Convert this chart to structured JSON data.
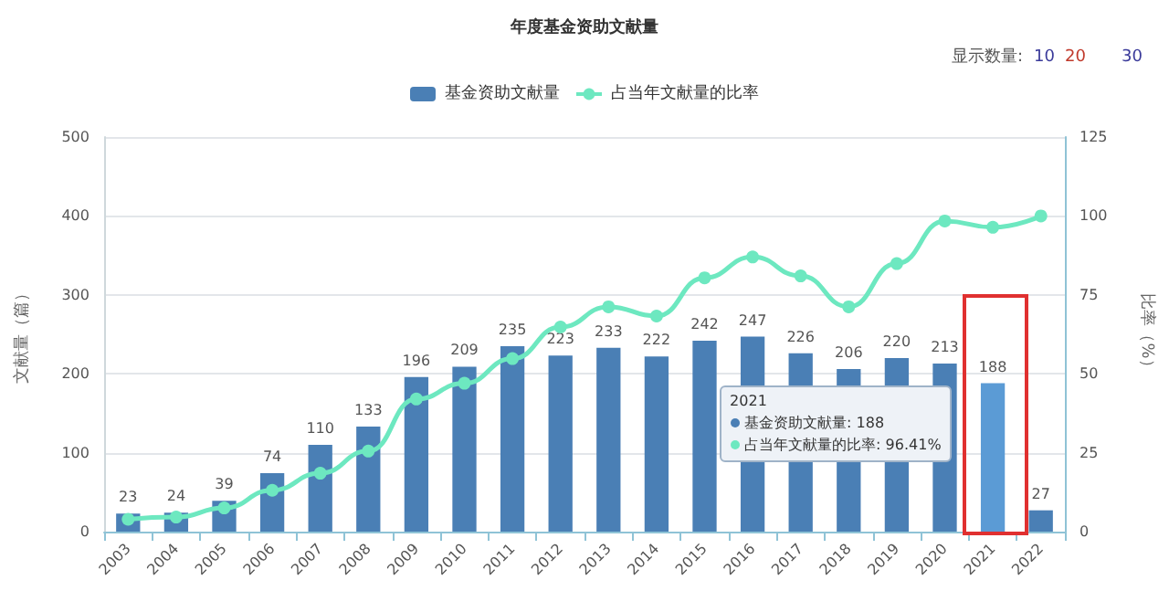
{
  "chart_data": {
    "type": "bar",
    "title": "年度基金资助文献量",
    "xlabel": null,
    "ylabel": "文献量（篇）",
    "y2label": "比率（%）",
    "categories": [
      "2003",
      "2004",
      "2005",
      "2006",
      "2007",
      "2008",
      "2009",
      "2010",
      "2011",
      "2012",
      "2013",
      "2014",
      "2015",
      "2016",
      "2017",
      "2018",
      "2019",
      "2020",
      "2021",
      "2022"
    ],
    "series": [
      {
        "name": "基金资助文献量",
        "color": "#4a7fb5",
        "colors": [
          "#4a7fb5",
          "#4a7fb5",
          "#4a7fb5",
          "#4a7fb5",
          "#4a7fb5",
          "#4a7fb5",
          "#4a7fb5",
          "#4a7fb5",
          "#4a7fb5",
          "#4a7fb5",
          "#4a7fb5",
          "#4a7fb5",
          "#4a7fb5",
          "#4a7fb5",
          "#4a7fb5",
          "#4a7fb5",
          "#4a7fb5",
          "#4a7fb5",
          "#5b9bd5",
          "#4a7fb5"
        ],
        "values": [
          23,
          24,
          39,
          74,
          110,
          133,
          196,
          209,
          235,
          223,
          233,
          222,
          242,
          247,
          226,
          206,
          220,
          213,
          188,
          27
        ],
        "value_labels": [
          "23",
          "24",
          "39",
          "74",
          "110",
          "133",
          "196",
          "209",
          "235",
          "223",
          "233",
          "222",
          "242",
          "247",
          "226",
          "206",
          "220",
          "213",
          "188",
          "27"
        ]
      },
      {
        "name": "占当年文献量的比率",
        "type": "line",
        "axis": "y2",
        "color": "#6de8c0",
        "values": [
          3.9,
          4.6,
          7.5,
          13.1,
          18.5,
          25.5,
          42,
          47,
          54.8,
          64.8,
          71.2,
          68.3,
          80.4,
          87,
          81,
          71.2,
          84.9,
          98.4,
          96.4,
          100
        ]
      }
    ],
    "ylim": [
      0,
      500
    ],
    "yticks": [
      0,
      100,
      200,
      300,
      400,
      500
    ],
    "y2lim": [
      0,
      125
    ],
    "y2ticks": [
      0,
      25,
      50,
      75,
      100,
      125
    ],
    "grid": "y",
    "legend": "top",
    "marker": "circle",
    "annotations": [
      "显示数量:",
      "10",
      "20",
      "30",
      "2021",
      "基金资助文献量: 188",
      "占当年文献量的比率: 96.41%"
    ]
  }
}
